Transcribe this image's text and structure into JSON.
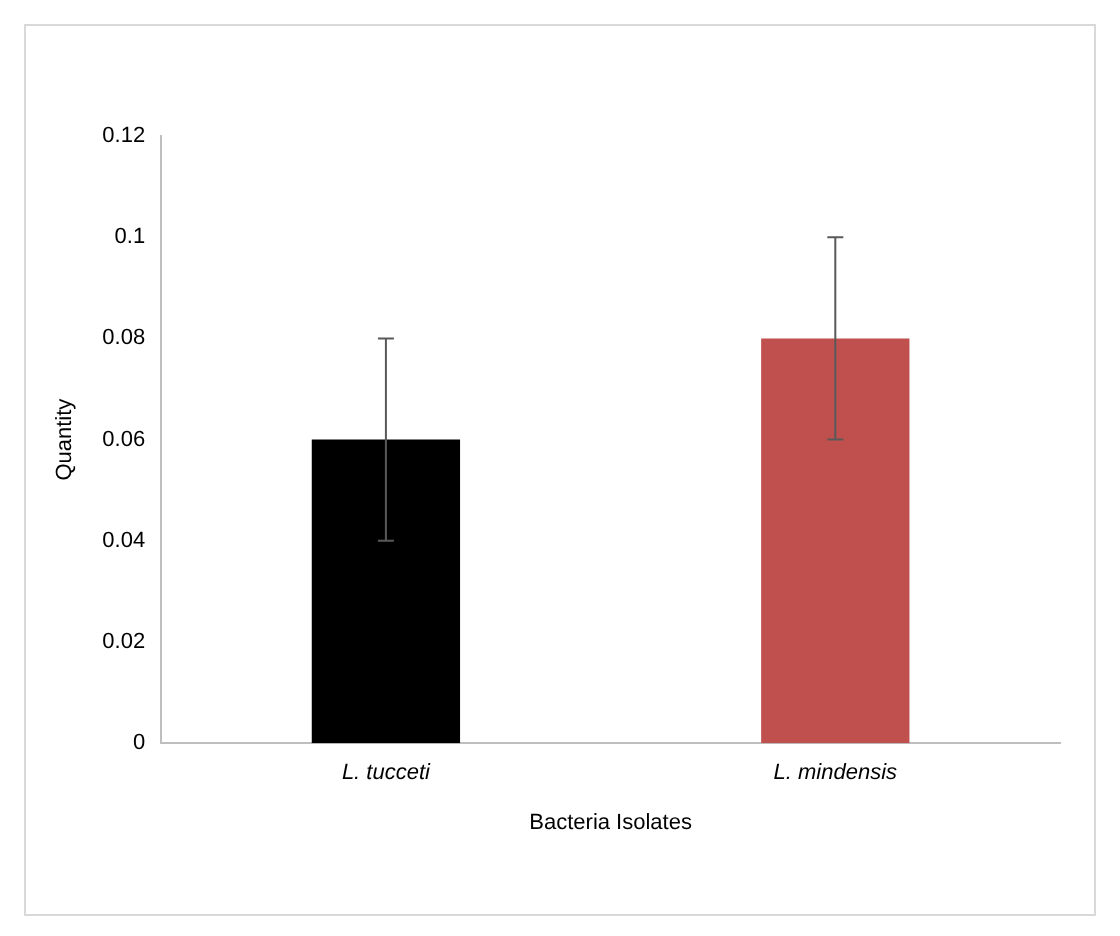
{
  "chart_data": {
    "type": "bar",
    "xlabel": "Bacteria Isolates",
    "ylabel": "Quantity",
    "categories": [
      "L. tucceti",
      "L. mindensis"
    ],
    "values": [
      0.06,
      0.08
    ],
    "colors": [
      "#000000",
      "#c0504d"
    ],
    "errors": [
      0.02,
      0.02
    ],
    "ylim": [
      0,
      0.12
    ],
    "yticks": [
      0,
      0.02,
      0.04,
      0.06,
      0.08,
      0.1,
      0.12
    ],
    "grid": false,
    "legend": false
  }
}
